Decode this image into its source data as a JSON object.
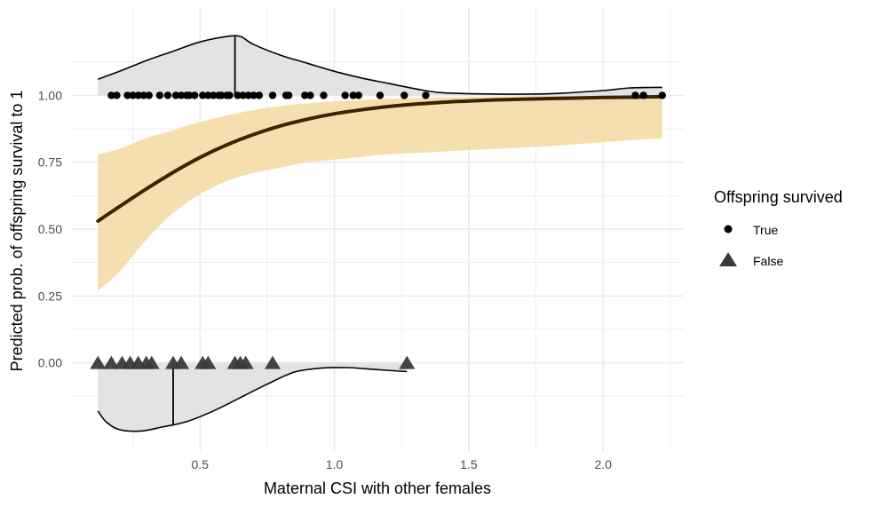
{
  "chart_data": {
    "type": "scatter",
    "xlabel": "Maternal CSI with other females",
    "ylabel": "Predicted prob. of offspring survival to 1",
    "xlim": [
      0.02,
      2.3
    ],
    "ylim": [
      -0.33,
      1.33
    ],
    "x_ticks": [
      0.5,
      1.0,
      1.5,
      2.0
    ],
    "x_tick_labels": [
      "0.5",
      "1.0",
      "1.5",
      "2.0"
    ],
    "y_ticks": [
      0.0,
      0.25,
      0.5,
      0.75,
      1.0
    ],
    "y_tick_labels": [
      "0.00",
      "0.25",
      "0.50",
      "0.75",
      "1.00"
    ],
    "grid": true,
    "legend": {
      "title": "Offspring survived",
      "position": "right",
      "entries": [
        {
          "label": "True",
          "shape": "circle"
        },
        {
          "label": "False",
          "shape": "triangle"
        }
      ]
    },
    "colors": {
      "fit_line": "#3b2500",
      "ribbon": "#f5d9a0",
      "density_fill": "#e3e3e3",
      "points_true": "#000000",
      "points_false": "#3a3a3a",
      "grid": "#ebebeb"
    },
    "fit_line": {
      "x": [
        0.12,
        0.2,
        0.3,
        0.4,
        0.5,
        0.6,
        0.7,
        0.8,
        0.9,
        1.0,
        1.1,
        1.2,
        1.3,
        1.4,
        1.5,
        1.6,
        1.8,
        2.0,
        2.22
      ],
      "y": [
        0.53,
        0.584,
        0.65,
        0.712,
        0.768,
        0.815,
        0.854,
        0.886,
        0.911,
        0.931,
        0.946,
        0.958,
        0.967,
        0.974,
        0.979,
        0.983,
        0.988,
        0.992,
        0.995
      ]
    },
    "confidence_band": {
      "x": [
        0.12,
        0.2,
        0.3,
        0.4,
        0.5,
        0.6,
        0.7,
        0.8,
        0.9,
        1.0,
        1.1,
        1.2,
        1.4,
        1.6,
        1.8,
        2.0,
        2.22
      ],
      "lower": [
        0.27,
        0.34,
        0.46,
        0.56,
        0.63,
        0.68,
        0.71,
        0.73,
        0.75,
        0.76,
        0.77,
        0.78,
        0.79,
        0.8,
        0.81,
        0.825,
        0.84
      ],
      "upper": [
        0.78,
        0.8,
        0.84,
        0.87,
        0.9,
        0.925,
        0.945,
        0.96,
        0.97,
        0.978,
        0.983,
        0.987,
        0.992,
        0.995,
        0.997,
        0.998,
        0.999
      ]
    },
    "points_true": {
      "x": [
        0.17,
        0.19,
        0.23,
        0.25,
        0.27,
        0.29,
        0.31,
        0.35,
        0.38,
        0.41,
        0.43,
        0.45,
        0.46,
        0.48,
        0.51,
        0.53,
        0.55,
        0.57,
        0.58,
        0.6,
        0.61,
        0.64,
        0.66,
        0.68,
        0.7,
        0.72,
        0.77,
        0.82,
        0.83,
        0.89,
        0.91,
        0.96,
        1.04,
        1.07,
        1.09,
        1.17,
        1.26,
        1.34,
        2.12,
        2.15,
        2.22
      ],
      "y": 1.0
    },
    "points_false": {
      "x": [
        0.12,
        0.17,
        0.21,
        0.24,
        0.27,
        0.3,
        0.32,
        0.4,
        0.43,
        0.51,
        0.53,
        0.63,
        0.65,
        0.67,
        0.77,
        1.27
      ],
      "y": 0.0
    },
    "density_true": {
      "x": [
        0.12,
        0.2,
        0.3,
        0.4,
        0.5,
        0.6,
        0.65,
        0.7,
        0.8,
        0.9,
        1.0,
        1.1,
        1.2,
        1.3,
        1.4,
        1.6,
        1.8,
        2.0,
        2.1,
        2.22
      ],
      "y": [
        1.06,
        1.09,
        1.13,
        1.165,
        1.2,
        1.22,
        1.22,
        1.19,
        1.15,
        1.12,
        1.09,
        1.065,
        1.045,
        1.025,
        1.01,
        1.005,
        1.006,
        1.018,
        1.028,
        1.03
      ],
      "median_x": 0.63,
      "median_top": 1.22
    },
    "density_false": {
      "x": [
        0.12,
        0.15,
        0.2,
        0.28,
        0.36,
        0.45,
        0.55,
        0.65,
        0.75,
        0.85,
        0.95,
        1.05,
        1.15,
        1.27
      ],
      "y": [
        -0.18,
        -0.22,
        -0.25,
        -0.255,
        -0.24,
        -0.22,
        -0.18,
        -0.13,
        -0.08,
        -0.035,
        -0.02,
        -0.018,
        -0.025,
        -0.033
      ],
      "median_x": 0.4,
      "median_bottom": -0.235
    }
  }
}
